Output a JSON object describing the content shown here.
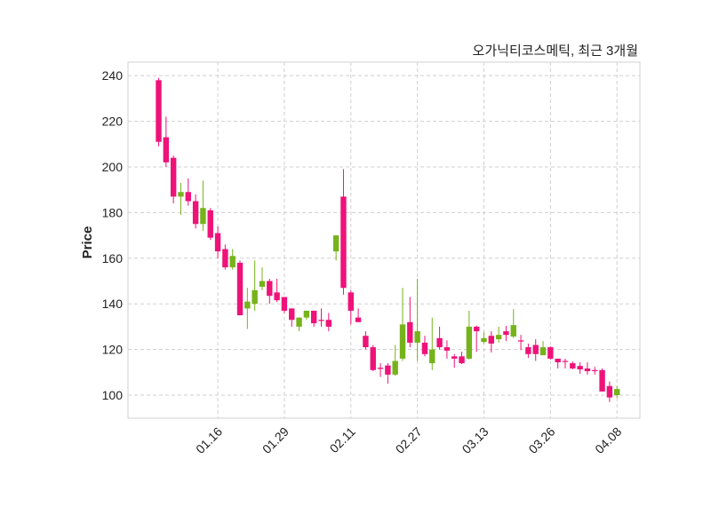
{
  "chart_data": {
    "type": "candlestick",
    "title": "오가닉티코스메틱, 최근 3개월",
    "xlabel": "",
    "ylabel": "Price",
    "ylim": [
      89.9,
      245.9
    ],
    "xlim": [
      -4.15,
      65.1
    ],
    "grid": true,
    "yticks": [
      100,
      120,
      140,
      160,
      180,
      200,
      220,
      240
    ],
    "xticks": [
      {
        "index": 8,
        "label": "01.16"
      },
      {
        "index": 17,
        "label": "01.29"
      },
      {
        "index": 26,
        "label": "02.11"
      },
      {
        "index": 35,
        "label": "02.27"
      },
      {
        "index": 44,
        "label": "03.13"
      },
      {
        "index": 53,
        "label": "03.26"
      },
      {
        "index": 62,
        "label": "04.08"
      }
    ],
    "up_color": "#76b31b",
    "down_color": "#ee1279",
    "ohlc_fields": [
      "open",
      "high",
      "low",
      "close"
    ],
    "candles": [
      [
        238,
        239,
        209,
        211
      ],
      [
        213,
        222,
        200,
        202
      ],
      [
        204,
        205,
        184,
        187
      ],
      [
        187,
        193,
        179,
        189
      ],
      [
        189,
        195,
        183,
        185
      ],
      [
        185,
        188,
        173,
        175
      ],
      [
        175,
        194,
        172,
        182
      ],
      [
        181,
        182,
        168,
        169
      ],
      [
        171,
        174,
        160,
        163
      ],
      [
        164,
        166,
        155,
        156
      ],
      [
        156,
        164,
        155,
        161
      ],
      [
        158,
        159,
        135,
        135
      ],
      [
        138,
        147,
        129,
        141
      ],
      [
        140,
        159,
        137,
        146
      ],
      [
        147.5,
        156,
        146,
        150
      ],
      [
        150,
        151,
        140,
        143.5
      ],
      [
        145,
        151,
        140.8,
        141.6
      ],
      [
        143,
        143,
        136,
        137
      ],
      [
        138,
        138,
        130,
        133
      ],
      [
        130,
        134,
        128,
        134
      ],
      [
        134,
        137,
        133,
        137
      ],
      [
        137,
        137,
        130,
        131.5
      ],
      [
        133,
        138,
        130,
        132.5
      ],
      [
        133,
        136,
        128,
        130
      ],
      [
        163,
        170,
        159,
        170
      ],
      [
        187,
        199,
        144,
        147
      ],
      [
        145,
        146,
        131,
        137
      ],
      [
        134,
        138,
        132,
        132
      ],
      [
        126,
        128,
        120,
        121
      ],
      [
        121,
        122,
        110.5,
        111
      ],
      [
        112,
        114,
        108,
        111.5
      ],
      [
        113,
        114,
        105,
        109
      ],
      [
        109,
        122,
        108.5,
        115
      ],
      [
        116,
        147,
        115,
        131
      ],
      [
        132,
        143,
        121,
        123
      ],
      [
        123,
        151,
        115,
        128
      ],
      [
        123,
        126,
        117,
        118
      ],
      [
        114,
        134,
        111,
        120
      ],
      [
        125,
        130,
        120,
        121
      ],
      [
        121,
        124,
        116,
        119.5
      ],
      [
        117,
        118,
        112,
        116
      ],
      [
        117,
        119,
        113.6,
        114
      ],
      [
        116,
        137,
        115.6,
        130
      ],
      [
        130,
        130.5,
        119,
        128
      ],
      [
        123.3,
        127.6,
        122.6,
        125
      ],
      [
        126,
        128,
        118.7,
        122.6
      ],
      [
        124.5,
        130,
        123,
        126.4
      ],
      [
        128,
        130.3,
        123.7,
        126.4
      ],
      [
        125.7,
        137.7,
        125,
        130.7
      ],
      [
        124,
        126.4,
        119.8,
        123.5
      ],
      [
        121,
        122.6,
        116.3,
        118
      ],
      [
        122,
        124.5,
        115,
        118
      ],
      [
        117.5,
        123.7,
        117.5,
        121
      ],
      [
        121,
        121.4,
        115.6,
        116
      ],
      [
        116,
        116,
        111.7,
        114.4
      ],
      [
        115,
        116,
        111.7,
        114.6
      ],
      [
        114,
        114.8,
        111.3,
        111.7
      ],
      [
        112.8,
        114.4,
        109.3,
        111.3
      ],
      [
        111.7,
        114.4,
        109,
        110.5
      ],
      [
        111,
        112.4,
        109,
        110.8
      ],
      [
        111,
        111.7,
        101.6,
        101.6
      ],
      [
        104,
        106,
        97,
        99
      ],
      [
        100,
        104,
        98.8,
        102.7
      ]
    ]
  }
}
